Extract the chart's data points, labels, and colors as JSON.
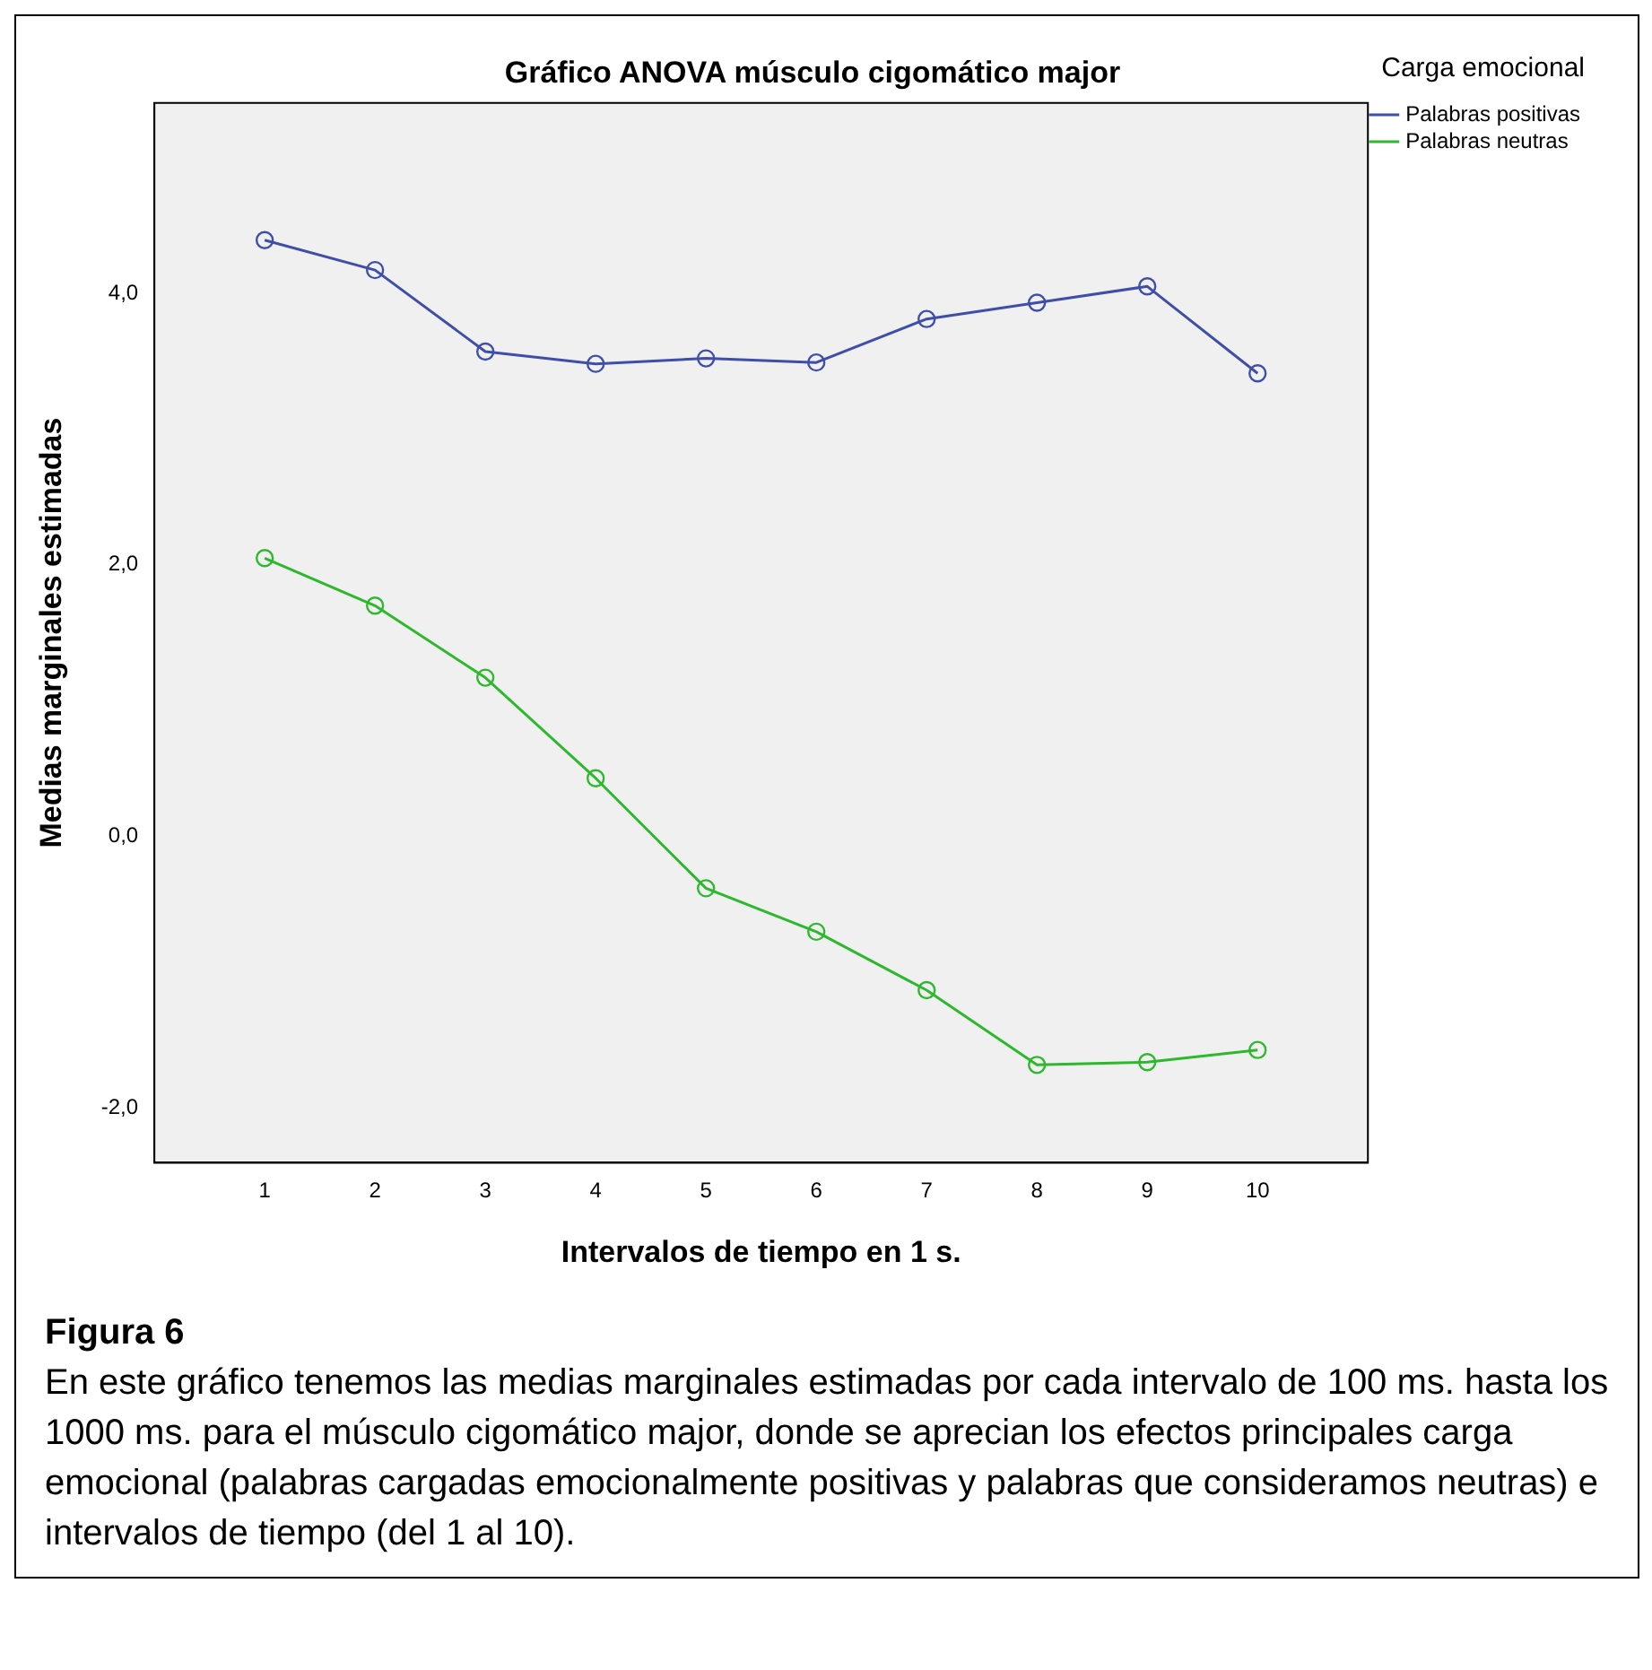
{
  "chart_data": {
    "type": "line",
    "title": "Gráfico ANOVA músculo cigomático major",
    "xlabel": "Intervalos de tiempo en 1 s.",
    "ylabel": "Medias marginales estimadas",
    "legend_title": "Carga emocional",
    "x": [
      1,
      2,
      3,
      4,
      5,
      6,
      7,
      8,
      9,
      10
    ],
    "series": [
      {
        "name": "Palabras positivas",
        "color": "#3f4fa8",
        "values": [
          4.39,
          4.17,
          3.57,
          3.48,
          3.52,
          3.49,
          3.81,
          3.93,
          4.05,
          3.41
        ]
      },
      {
        "name": "Palabras neutras",
        "color": "#2db82d",
        "values": [
          2.05,
          1.7,
          1.17,
          0.43,
          -0.38,
          -0.7,
          -1.13,
          -1.68,
          -1.66,
          -1.57
        ]
      }
    ],
    "xlim": [
      0,
      11
    ],
    "xticks": [
      1,
      2,
      3,
      4,
      5,
      6,
      7,
      8,
      9,
      10
    ],
    "ylim": [
      -2.4,
      5.4
    ],
    "yticks": [
      {
        "value": -2,
        "label": "-2,0"
      },
      {
        "value": 0,
        "label": "0,0"
      },
      {
        "value": 2,
        "label": "2,0"
      },
      {
        "value": 4,
        "label": "4,0"
      }
    ],
    "grid": false,
    "legend": "top right",
    "marker": "circle",
    "line_style": "solid",
    "annotations": [
      "Figura 6",
      "En este gráfico tenemos las medias marginales estimadas por cada intervalo de 100 ms. hasta los 1000 ms. para el músculo cigomático major, donde se aprecian los efectos principales carga emocional (palabras cargadas emocionalmente positivas y palabras que consideramos neutras) e intervalos de tiempo (del 1 al 10)."
    ]
  }
}
